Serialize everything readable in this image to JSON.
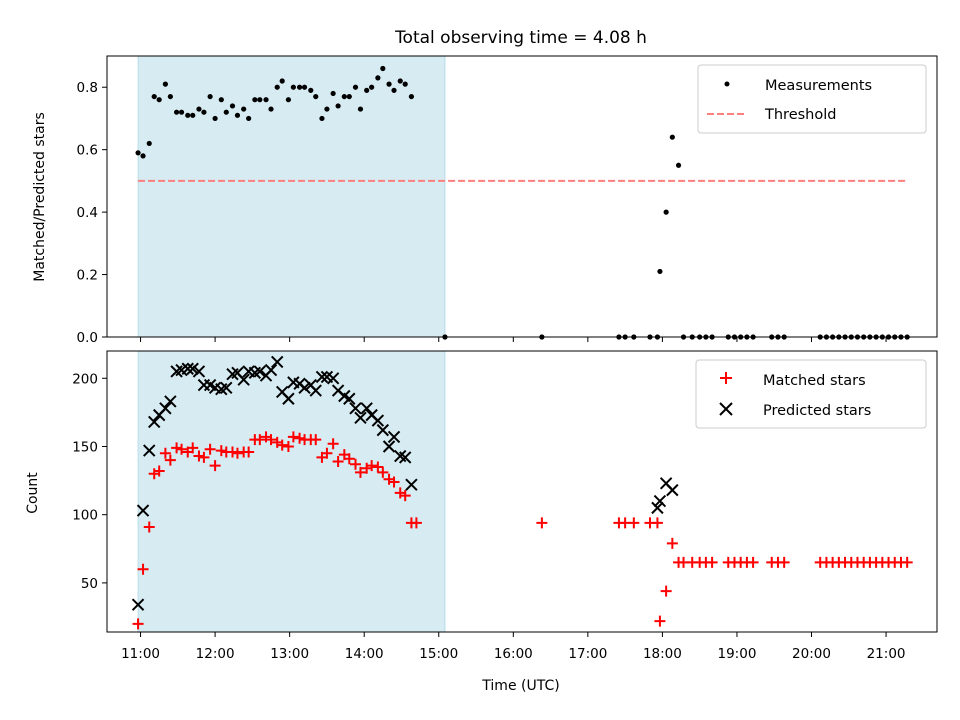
{
  "chart_data": [
    {
      "type": "scatter",
      "panel": "top",
      "title": "Total observing time = 4.08 h",
      "xlabel": "",
      "ylabel": "Matched/Predicted stars",
      "ylim": [
        0,
        0.9
      ],
      "yticks": [
        "0.0",
        "0.2",
        "0.4",
        "0.6",
        "0.8"
      ],
      "shaded_interval": [
        "10:58",
        "15:05"
      ],
      "legend_position": "top-right",
      "grid": false,
      "series": [
        {
          "name": "Measurements",
          "marker": "dot",
          "color": "#000000",
          "points": [
            [
              "10:58",
              0.59
            ],
            [
              "11:02",
              0.58
            ],
            [
              "11:07",
              0.62
            ],
            [
              "11:11",
              0.77
            ],
            [
              "11:15",
              0.76
            ],
            [
              "11:20",
              0.81
            ],
            [
              "11:24",
              0.77
            ],
            [
              "11:29",
              0.72
            ],
            [
              "11:33",
              0.72
            ],
            [
              "11:38",
              0.71
            ],
            [
              "11:42",
              0.71
            ],
            [
              "11:47",
              0.73
            ],
            [
              "11:51",
              0.72
            ],
            [
              "11:56",
              0.77
            ],
            [
              "12:00",
              0.7
            ],
            [
              "12:05",
              0.76
            ],
            [
              "12:09",
              0.72
            ],
            [
              "12:14",
              0.74
            ],
            [
              "12:18",
              0.71
            ],
            [
              "12:23",
              0.73
            ],
            [
              "12:27",
              0.7
            ],
            [
              "12:32",
              0.76
            ],
            [
              "12:36",
              0.76
            ],
            [
              "12:41",
              0.76
            ],
            [
              "12:45",
              0.73
            ],
            [
              "12:50",
              0.8
            ],
            [
              "12:54",
              0.82
            ],
            [
              "12:59",
              0.76
            ],
            [
              "13:03",
              0.8
            ],
            [
              "13:08",
              0.8
            ],
            [
              "13:12",
              0.8
            ],
            [
              "13:17",
              0.79
            ],
            [
              "13:21",
              0.77
            ],
            [
              "13:26",
              0.7
            ],
            [
              "13:30",
              0.73
            ],
            [
              "13:35",
              0.78
            ],
            [
              "13:39",
              0.74
            ],
            [
              "13:44",
              0.77
            ],
            [
              "13:48",
              0.77
            ],
            [
              "13:53",
              0.8
            ],
            [
              "13:57",
              0.73
            ],
            [
              "14:02",
              0.79
            ],
            [
              "14:06",
              0.8
            ],
            [
              "14:11",
              0.83
            ],
            [
              "14:15",
              0.86
            ],
            [
              "14:20",
              0.81
            ],
            [
              "14:24",
              0.79
            ],
            [
              "14:29",
              0.82
            ],
            [
              "14:33",
              0.81
            ],
            [
              "14:38",
              0.77
            ],
            [
              "15:05",
              0
            ],
            [
              "16:23",
              0
            ],
            [
              "17:25",
              0
            ],
            [
              "17:30",
              0
            ],
            [
              "17:37",
              0
            ],
            [
              "17:50",
              0
            ],
            [
              "17:56",
              0
            ],
            [
              "17:58",
              0.21
            ],
            [
              "18:03",
              0.4
            ],
            [
              "18:08",
              0.64
            ],
            [
              "18:13",
              0.55
            ],
            [
              "18:17",
              0
            ],
            [
              "18:24",
              0
            ],
            [
              "18:30",
              0
            ],
            [
              "18:35",
              0
            ],
            [
              "18:40",
              0
            ],
            [
              "18:53",
              0
            ],
            [
              "18:58",
              0
            ],
            [
              "19:03",
              0
            ],
            [
              "19:08",
              0
            ],
            [
              "19:13",
              0
            ],
            [
              "19:28",
              0
            ],
            [
              "19:33",
              0
            ],
            [
              "19:38",
              0
            ],
            [
              "20:07",
              0
            ],
            [
              "20:12",
              0
            ],
            [
              "20:17",
              0
            ],
            [
              "20:22",
              0
            ],
            [
              "20:27",
              0
            ],
            [
              "20:32",
              0
            ],
            [
              "20:37",
              0
            ],
            [
              "20:42",
              0
            ],
            [
              "20:47",
              0
            ],
            [
              "20:52",
              0
            ],
            [
              "20:57",
              0
            ],
            [
              "21:02",
              0
            ],
            [
              "21:07",
              0
            ],
            [
              "21:12",
              0
            ],
            [
              "21:17",
              0
            ]
          ]
        },
        {
          "name": "Threshold",
          "style": "dashed-line",
          "color": "#ff7f7f",
          "points": [
            [
              "10:58",
              0.5
            ],
            [
              "21:17",
              0.5
            ]
          ]
        }
      ]
    },
    {
      "type": "scatter",
      "panel": "bottom",
      "xlabel": "Time (UTC)",
      "ylabel": "Count",
      "ylim": [
        14,
        220
      ],
      "yticks": [
        "50",
        "100",
        "150",
        "200"
      ],
      "xticks": [
        "11:00",
        "12:00",
        "13:00",
        "14:00",
        "15:00",
        "16:00",
        "17:00",
        "18:00",
        "19:00",
        "20:00",
        "21:00"
      ],
      "xlim": [
        "10:33",
        "21:41"
      ],
      "shaded_interval": [
        "10:58",
        "15:05"
      ],
      "legend_position": "top-right",
      "grid": false,
      "series": [
        {
          "name": "Matched stars",
          "marker": "plus",
          "color": "#ff0000",
          "points": [
            [
              "10:58",
              20
            ],
            [
              "11:02",
              60
            ],
            [
              "11:07",
              91
            ],
            [
              "11:11",
              130
            ],
            [
              "11:15",
              132
            ],
            [
              "11:20",
              145
            ],
            [
              "11:24",
              140
            ],
            [
              "11:29",
              149
            ],
            [
              "11:33",
              148
            ],
            [
              "11:38",
              146
            ],
            [
              "11:42",
              149
            ],
            [
              "11:47",
              143
            ],
            [
              "11:51",
              142
            ],
            [
              "11:56",
              148
            ],
            [
              "12:00",
              136
            ],
            [
              "12:05",
              147
            ],
            [
              "12:09",
              146
            ],
            [
              "12:14",
              146
            ],
            [
              "12:18",
              145
            ],
            [
              "12:23",
              146
            ],
            [
              "12:27",
              146
            ],
            [
              "12:32",
              155
            ],
            [
              "12:36",
              155
            ],
            [
              "12:41",
              157
            ],
            [
              "12:45",
              155
            ],
            [
              "12:50",
              153
            ],
            [
              "12:54",
              151
            ],
            [
              "12:59",
              150
            ],
            [
              "13:03",
              157
            ],
            [
              "13:08",
              156
            ],
            [
              "13:12",
              155
            ],
            [
              "13:17",
              155
            ],
            [
              "13:21",
              155
            ],
            [
              "13:26",
              142
            ],
            [
              "13:30",
              145
            ],
            [
              "13:35",
              152
            ],
            [
              "13:39",
              139
            ],
            [
              "13:44",
              144
            ],
            [
              "13:48",
              141
            ],
            [
              "13:53",
              137
            ],
            [
              "13:57",
              131
            ],
            [
              "14:02",
              134
            ],
            [
              "14:06",
              136
            ],
            [
              "14:11",
              135
            ],
            [
              "14:15",
              131
            ],
            [
              "14:20",
              126
            ],
            [
              "14:24",
              124
            ],
            [
              "14:29",
              116
            ],
            [
              "14:33",
              114
            ],
            [
              "14:38",
              94
            ],
            [
              "14:42",
              94
            ],
            [
              "16:23",
              94
            ],
            [
              "17:25",
              94
            ],
            [
              "17:30",
              94
            ],
            [
              "17:37",
              94
            ],
            [
              "17:50",
              94
            ],
            [
              "17:56",
              94
            ],
            [
              "17:58",
              22
            ],
            [
              "18:03",
              44
            ],
            [
              "18:08",
              79
            ],
            [
              "18:13",
              65
            ],
            [
              "18:17",
              65
            ],
            [
              "18:24",
              65
            ],
            [
              "18:30",
              65
            ],
            [
              "18:35",
              65
            ],
            [
              "18:40",
              65
            ],
            [
              "18:53",
              65
            ],
            [
              "18:58",
              65
            ],
            [
              "19:03",
              65
            ],
            [
              "19:08",
              65
            ],
            [
              "19:13",
              65
            ],
            [
              "19:28",
              65
            ],
            [
              "19:33",
              65
            ],
            [
              "19:38",
              65
            ],
            [
              "20:07",
              65
            ],
            [
              "20:12",
              65
            ],
            [
              "20:17",
              65
            ],
            [
              "20:22",
              65
            ],
            [
              "20:27",
              65
            ],
            [
              "20:32",
              65
            ],
            [
              "20:37",
              65
            ],
            [
              "20:42",
              65
            ],
            [
              "20:47",
              65
            ],
            [
              "20:52",
              65
            ],
            [
              "20:57",
              65
            ],
            [
              "21:02",
              65
            ],
            [
              "21:07",
              65
            ],
            [
              "21:12",
              65
            ],
            [
              "21:17",
              65
            ]
          ]
        },
        {
          "name": "Predicted stars",
          "marker": "x",
          "color": "#000000",
          "points": [
            [
              "10:58",
              34
            ],
            [
              "11:02",
              103
            ],
            [
              "11:07",
              147
            ],
            [
              "11:11",
              168
            ],
            [
              "11:15",
              173
            ],
            [
              "11:20",
              178
            ],
            [
              "11:24",
              183
            ],
            [
              "11:29",
              205
            ],
            [
              "11:33",
              206
            ],
            [
              "11:38",
              207
            ],
            [
              "11:42",
              207
            ],
            [
              "11:47",
              205
            ],
            [
              "11:51",
              195
            ],
            [
              "11:56",
              195
            ],
            [
              "12:00",
              193
            ],
            [
              "12:05",
              192
            ],
            [
              "12:09",
              193
            ],
            [
              "12:14",
              203
            ],
            [
              "12:18",
              204
            ],
            [
              "12:23",
              199
            ],
            [
              "12:27",
              205
            ],
            [
              "12:32",
              204
            ],
            [
              "12:36",
              205
            ],
            [
              "12:41",
              202
            ],
            [
              "12:45",
              206
            ],
            [
              "12:50",
              212
            ],
            [
              "12:54",
              190
            ],
            [
              "12:59",
              185
            ],
            [
              "13:03",
              197
            ],
            [
              "13:08",
              196
            ],
            [
              "13:12",
              193
            ],
            [
              "13:17",
              195
            ],
            [
              "13:21",
              191
            ],
            [
              "13:26",
              201
            ],
            [
              "13:30",
              201
            ],
            [
              "13:35",
              200
            ],
            [
              "13:39",
              191
            ],
            [
              "13:44",
              187
            ],
            [
              "13:48",
              185
            ],
            [
              "13:53",
              178
            ],
            [
              "13:57",
              171
            ],
            [
              "14:02",
              178
            ],
            [
              "14:06",
              173
            ],
            [
              "14:11",
              169
            ],
            [
              "14:15",
              162
            ],
            [
              "14:20",
              150
            ],
            [
              "14:24",
              157
            ],
            [
              "14:29",
              143
            ],
            [
              "14:33",
              142
            ],
            [
              "14:38",
              122
            ],
            [
              "17:56",
              105
            ],
            [
              "17:58",
              110
            ],
            [
              "18:03",
              123
            ],
            [
              "18:08",
              118
            ]
          ]
        }
      ]
    }
  ]
}
